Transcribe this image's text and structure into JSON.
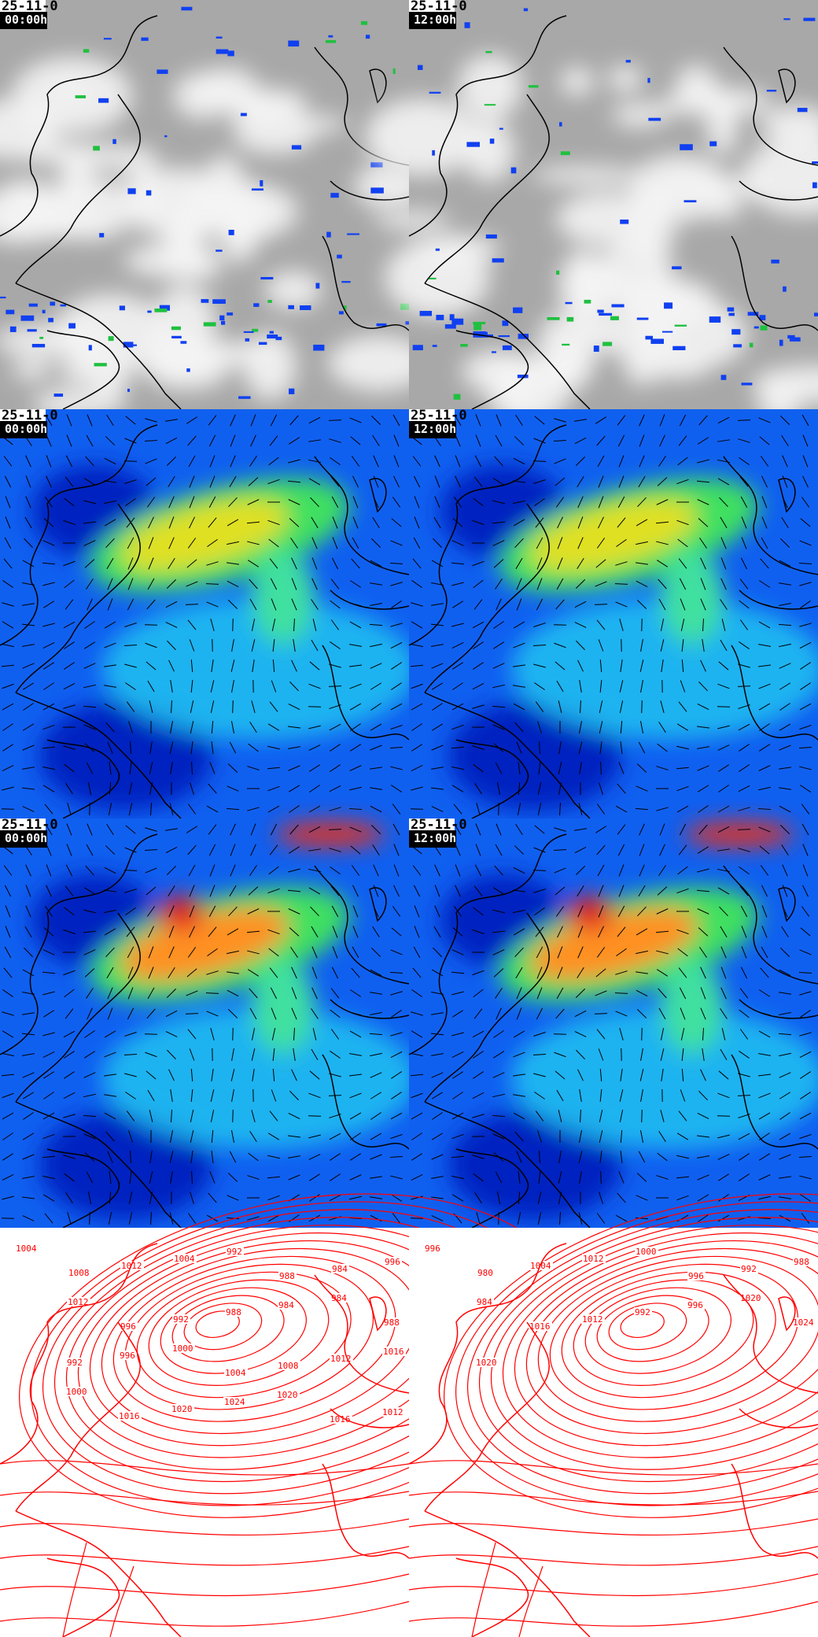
{
  "panels": [
    {
      "row": "satellite",
      "date": "25-11-0",
      "time": "00:00h"
    },
    {
      "row": "satellite",
      "date": "25-11-0",
      "time": "12:00h"
    },
    {
      "row": "wind-low",
      "date": "25-11-0",
      "time": "00:00h"
    },
    {
      "row": "wind-low",
      "date": "25-11-0",
      "time": "12:00h"
    },
    {
      "row": "wind-high",
      "date": "25-11-0",
      "time": "00:00h"
    },
    {
      "row": "wind-high",
      "date": "25-11-0",
      "time": "12:00h"
    },
    {
      "row": "pressure",
      "date": "",
      "time": ""
    },
    {
      "row": "pressure",
      "date": "",
      "time": ""
    }
  ],
  "isobar_labels_left": [
    "1004",
    "1008",
    "1012",
    "1004",
    "992",
    "988",
    "984",
    "996",
    "1012",
    "996",
    "992",
    "988",
    "984",
    "984",
    "988",
    "992",
    "996",
    "1000",
    "1004",
    "1008",
    "1012",
    "1016",
    "1000",
    "1016",
    "1020",
    "1024",
    "1020",
    "1016",
    "1012"
  ],
  "isobar_labels_right": [
    "996",
    "980",
    "1004",
    "1012",
    "1000",
    "996",
    "992",
    "988",
    "984",
    "1016",
    "1012",
    "992",
    "996",
    "1020",
    "1024",
    "1020"
  ],
  "colors": {
    "isobar": "#ff0000",
    "satellite_bg": "#a8a8a8",
    "wind_bg": "#1060f0",
    "coast": "#000000"
  }
}
